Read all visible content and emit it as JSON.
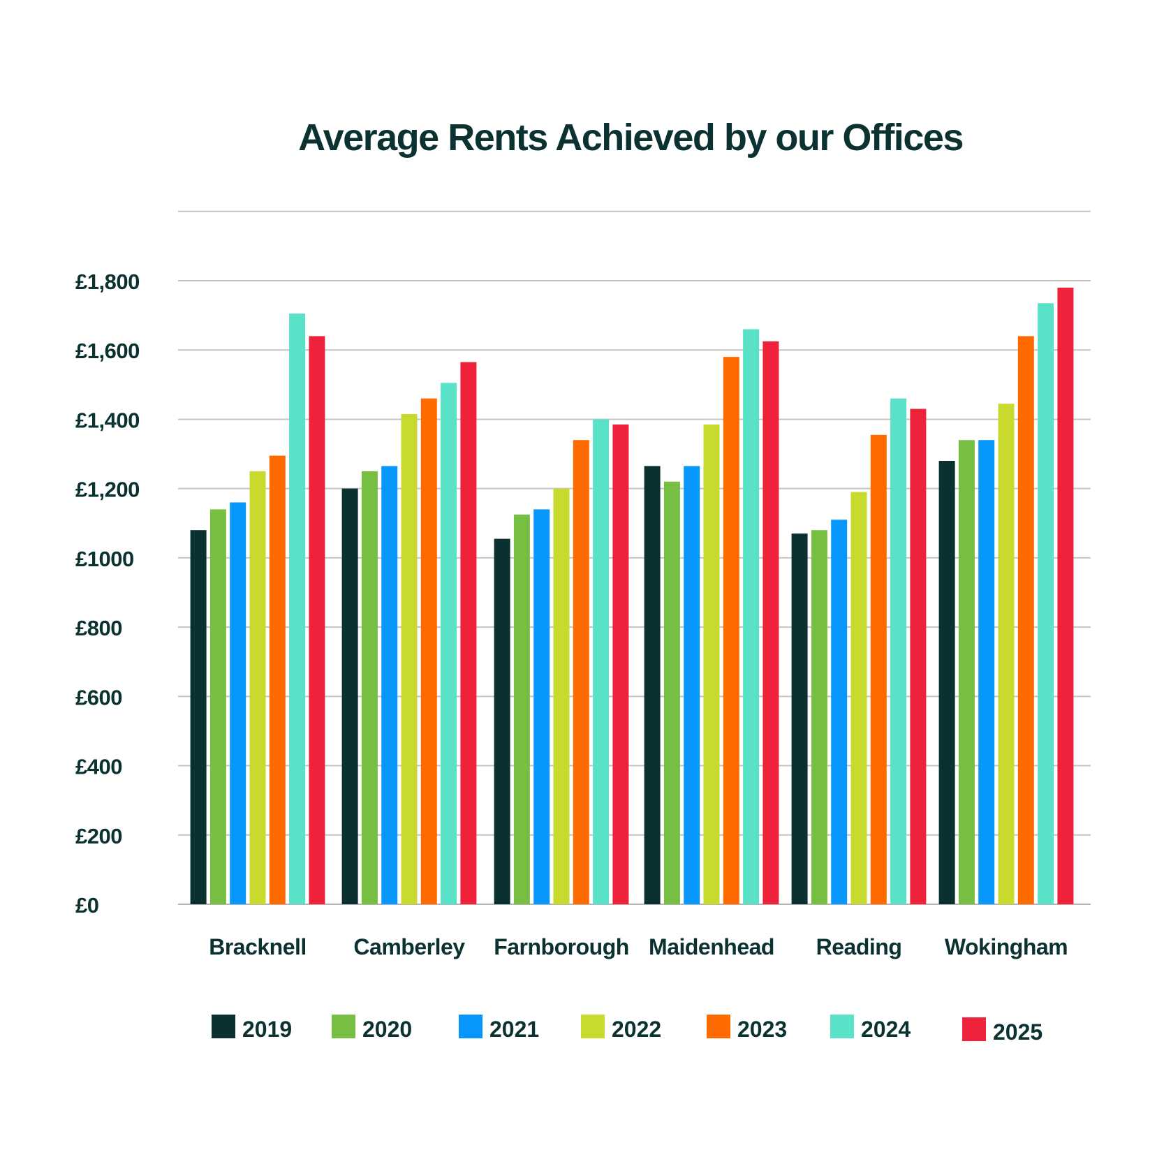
{
  "chart_data": {
    "type": "bar",
    "title": "Average Rents Achieved by our Offices",
    "xlabel": "",
    "ylabel": "",
    "ylim": [
      0,
      2000
    ],
    "grid": true,
    "legend_position": "bottom",
    "y_ticks": [
      {
        "value": 0,
        "label": "£0"
      },
      {
        "value": 200,
        "label": "£200"
      },
      {
        "value": 400,
        "label": "£400"
      },
      {
        "value": 600,
        "label": "£600"
      },
      {
        "value": 800,
        "label": "£800"
      },
      {
        "value": 1000,
        "label": "£1000"
      },
      {
        "value": 1200,
        "label": "£1,200"
      },
      {
        "value": 1400,
        "label": "£1,400"
      },
      {
        "value": 1600,
        "label": "£1,600"
      },
      {
        "value": 1800,
        "label": "£1,800"
      },
      {
        "value": 2000,
        "label": ""
      }
    ],
    "categories": [
      "Bracknell",
      "Camberley",
      "Farnborough",
      "Maidenhead",
      "Reading",
      "Wokingham"
    ],
    "series": [
      {
        "name": "2019",
        "color": "#0a3130",
        "values": [
          1080,
          1200,
          1055,
          1265,
          1070,
          1280
        ]
      },
      {
        "name": "2020",
        "color": "#77bf43",
        "values": [
          1140,
          1250,
          1125,
          1220,
          1080,
          1340
        ]
      },
      {
        "name": "2021",
        "color": "#0897fa",
        "values": [
          1160,
          1265,
          1140,
          1265,
          1110,
          1340
        ]
      },
      {
        "name": "2022",
        "color": "#c8da2e",
        "values": [
          1250,
          1415,
          1200,
          1385,
          1190,
          1445
        ]
      },
      {
        "name": "2023",
        "color": "#ff6a00",
        "values": [
          1295,
          1460,
          1340,
          1580,
          1355,
          1640
        ]
      },
      {
        "name": "2024",
        "color": "#5ae2c8",
        "values": [
          1705,
          1505,
          1400,
          1660,
          1460,
          1735
        ]
      },
      {
        "name": "2025",
        "color": "#ee233b",
        "values": [
          1640,
          1565,
          1385,
          1625,
          1430,
          1780
        ]
      }
    ]
  }
}
